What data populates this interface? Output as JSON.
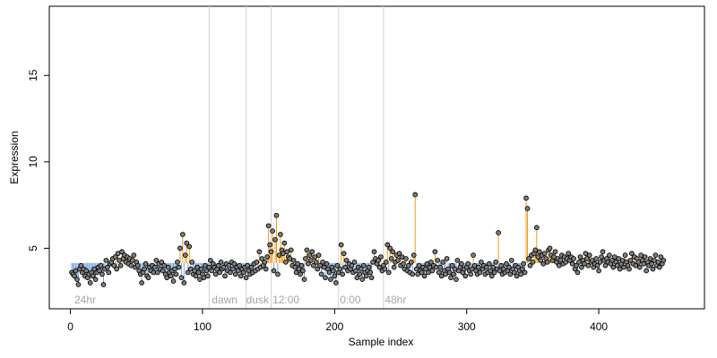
{
  "chart_data": {
    "type": "scatter",
    "title": "",
    "xlabel": "Sample index",
    "ylabel": "Expression",
    "xlim": [
      -16,
      480
    ],
    "ylim": [
      1.5,
      19
    ],
    "x_ticks": [
      0,
      100,
      200,
      300,
      400
    ],
    "y_ticks": [
      5,
      10,
      15
    ],
    "baseline": 4.15,
    "grid": false,
    "colors": {
      "above": "#f39c12",
      "below": "#6fa0e0",
      "point_fill": "#7f7f7f",
      "point_stroke": "#000000",
      "region_line": "#d3d3d3",
      "region_label": "#a6a6a6"
    },
    "region_lines": [
      105,
      133,
      152,
      203,
      237
    ],
    "region_labels": [
      {
        "x": 3,
        "text": "24hr"
      },
      {
        "x": 107,
        "text": "dawn"
      },
      {
        "x": 133,
        "text": "dusk"
      },
      {
        "x": 153,
        "text": "12:00"
      },
      {
        "x": 204,
        "text": "0:00"
      },
      {
        "x": 238,
        "text": "48hr"
      }
    ],
    "series": [
      {
        "values": [
          3.6,
          3.5,
          3.4,
          3.7,
          3.2,
          2.9,
          3.8,
          4.0,
          3.6,
          3.8,
          3.4,
          3.7,
          3.3,
          3.5,
          3.0,
          3.6,
          3.4,
          3.8,
          3.2,
          3.6,
          3.9,
          3.7,
          4.0,
          3.5,
          2.9,
          3.8,
          4.3,
          3.9,
          3.6,
          4.1,
          4.2,
          4.4,
          4.0,
          4.5,
          3.8,
          4.7,
          4.3,
          4.0,
          4.8,
          4.4,
          4.6,
          4.2,
          4.5,
          4.1,
          4.4,
          4.0,
          4.3,
          4.6,
          3.9,
          4.2,
          4.0,
          3.7,
          3.5,
          3.0,
          3.6,
          3.8,
          4.1,
          3.4,
          3.3,
          3.9,
          3.7,
          4.0,
          3.6,
          3.9,
          4.3,
          3.6,
          4.1,
          3.8,
          4.2,
          3.7,
          4.0,
          3.5,
          3.3,
          3.9,
          3.6,
          3.4,
          3.7,
          3.1,
          3.8,
          3.5,
          4.2,
          3.9,
          5.0,
          3.3,
          5.8,
          3.0,
          4.6,
          5.3,
          3.6,
          5.1,
          3.8,
          4.2,
          3.5,
          3.7,
          3.4,
          3.9,
          3.6,
          3.2,
          3.8,
          3.5,
          3.3,
          4.0,
          3.7,
          3.4,
          3.9,
          4.3,
          3.7,
          4.1,
          3.9,
          3.5,
          3.8,
          4.0,
          3.6,
          4.2,
          3.8,
          3.9,
          3.4,
          4.1,
          3.7,
          4.0,
          3.6,
          4.2,
          3.8,
          4.1,
          3.5,
          3.9,
          3.7,
          4.0,
          3.4,
          3.8,
          3.6,
          3.9,
          3.3,
          4.0,
          3.7,
          3.5,
          3.9,
          3.6,
          4.1,
          3.7,
          4.2,
          3.8,
          4.8,
          3.9,
          4.4,
          4.0,
          4.2,
          3.8,
          4.5,
          6.3,
          5.2,
          4.8,
          6.0,
          3.7,
          5.5,
          6.9,
          3.5,
          4.6,
          5.8,
          4.9,
          4.7,
          5.3,
          4.2,
          4.8,
          4.5,
          4.4,
          4.9,
          4.0,
          4.3,
          3.9,
          3.6,
          4.1,
          3.8,
          3.5,
          4.0,
          3.7,
          3.2,
          4.4,
          4.9,
          4.1,
          4.6,
          4.3,
          4.8,
          4.0,
          4.5,
          4.2,
          3.8,
          4.6,
          4.0,
          3.5,
          4.2,
          3.9,
          3.3,
          4.1,
          3.8,
          3.6,
          3.2,
          3.9,
          3.7,
          3.4,
          3.0,
          4.0,
          3.6,
          3.8,
          5.2,
          3.5,
          4.7,
          3.9,
          4.3,
          3.7,
          4.1,
          3.8,
          4.0,
          3.6,
          4.2,
          3.7,
          3.3,
          3.9,
          3.5,
          3.8,
          3.2,
          4.0,
          3.6,
          3.4,
          3.7,
          3.9,
          3.6,
          3.3,
          4.2,
          4.8,
          4.4,
          4.1,
          4.3,
          3.9,
          4.5,
          3.7,
          4.0,
          3.8,
          4.2,
          5.2,
          3.6,
          5.0,
          4.4,
          4.8,
          3.9,
          4.2,
          4.6,
          4.3,
          4.7,
          4.0,
          4.5,
          4.1,
          3.8,
          4.4,
          3.7,
          4.0,
          3.6,
          4.2,
          3.5,
          4.6,
          8.1,
          3.8,
          3.5,
          4.0,
          3.7,
          3.6,
          3.9,
          3.4,
          3.8,
          4.1,
          3.6,
          3.9,
          4.2,
          3.7,
          4.0,
          4.8,
          3.9,
          4.3,
          3.6,
          3.9,
          3.4,
          4.2,
          3.7,
          3.5,
          4.4,
          3.8,
          3.6,
          3.3,
          4.0,
          3.5,
          3.8,
          3.2,
          4.3,
          3.7,
          3.9,
          4.1,
          3.6,
          3.8,
          3.4,
          3.9,
          4.1,
          3.7,
          3.5,
          3.8,
          4.6,
          4.0,
          3.7,
          3.5,
          3.9,
          3.6,
          4.2,
          3.8,
          4.0,
          3.5,
          3.9,
          3.6,
          4.1,
          3.7,
          3.4,
          3.9,
          3.6,
          4.2,
          3.8,
          5.9,
          3.7,
          4.0,
          3.5,
          3.8,
          3.6,
          4.1,
          3.7,
          3.9,
          3.5,
          4.3,
          3.8,
          3.6,
          4.0,
          3.4,
          3.9,
          3.7,
          3.5,
          3.8,
          4.1,
          3.6,
          7.9,
          7.3,
          4.4,
          4.0,
          4.6,
          4.2,
          4.7,
          4.9,
          6.2,
          4.5,
          4.8,
          4.3,
          4.6,
          4.1,
          4.7,
          4.4,
          4.2,
          4.9,
          5.0,
          4.6,
          4.3,
          4.5,
          4.8,
          4.2,
          4.4,
          4.0,
          4.3,
          4.6,
          4.1,
          4.5,
          4.2,
          4.4,
          4.7,
          4.3,
          4.5,
          4.1,
          4.4,
          3.8,
          4.0,
          3.6,
          4.2,
          4.5,
          3.9,
          4.3,
          4.1,
          4.7,
          4.4,
          4.0,
          4.6,
          4.2,
          4.3,
          3.9,
          4.1,
          4.4,
          4.0,
          3.7,
          4.2,
          4.5,
          4.8,
          4.3,
          4.0,
          4.4,
          4.2,
          4.6,
          4.1,
          4.3,
          3.9,
          4.5,
          4.2,
          4.0,
          4.4,
          3.8,
          4.1,
          4.3,
          3.9,
          4.6,
          4.2,
          4.0,
          3.8,
          4.3,
          4.7,
          4.1,
          4.5,
          4.0,
          4.4,
          4.2,
          3.9,
          4.6,
          4.3,
          4.1,
          4.5,
          3.7,
          4.2,
          4.0,
          4.4,
          4.1,
          3.8,
          4.3,
          4.6,
          4.0,
          4.2,
          3.9,
          4.5,
          4.1,
          4.3
        ]
      }
    ]
  }
}
